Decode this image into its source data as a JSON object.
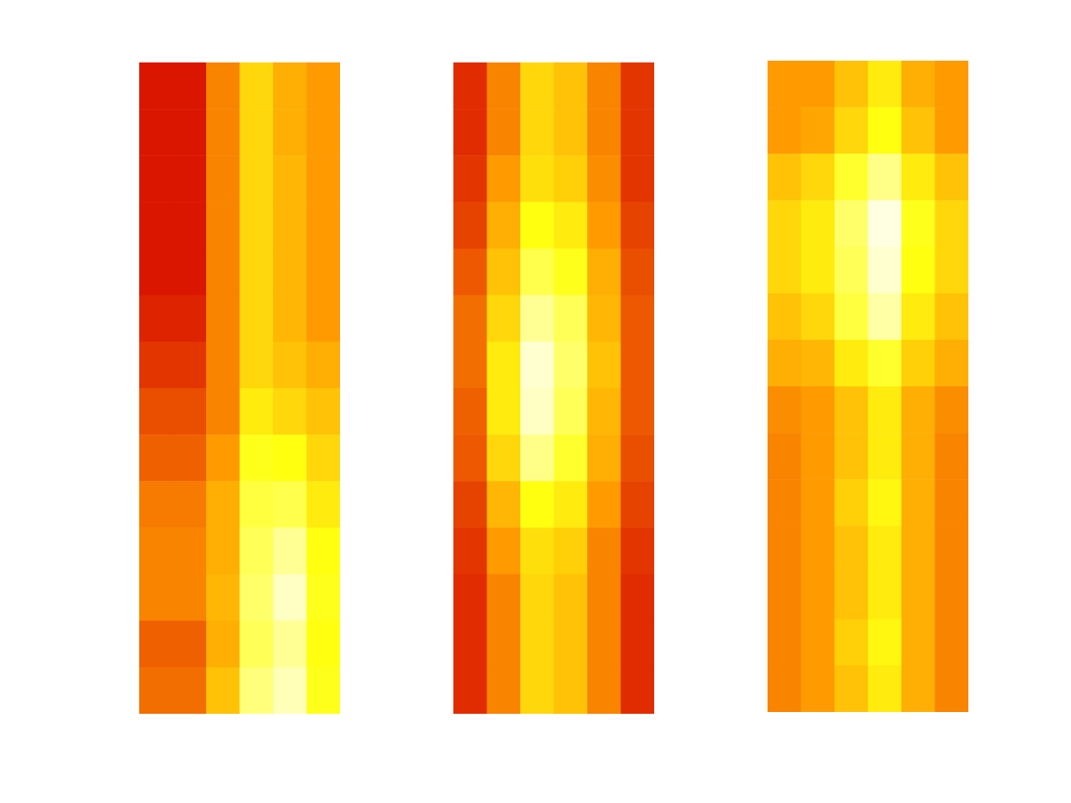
{
  "chart_data": [
    {
      "type": "heatmap",
      "tick_labels": false,
      "zlim": [
        0,
        1
      ],
      "cells": [
        [
          0.05,
          0.05,
          0.3,
          0.5,
          0.4,
          0.35
        ],
        [
          0.05,
          0.05,
          0.3,
          0.5,
          0.4,
          0.35
        ],
        [
          0.05,
          0.05,
          0.3,
          0.5,
          0.42,
          0.35
        ],
        [
          0.05,
          0.05,
          0.3,
          0.5,
          0.42,
          0.35
        ],
        [
          0.05,
          0.05,
          0.3,
          0.5,
          0.42,
          0.35
        ],
        [
          0.08,
          0.08,
          0.3,
          0.5,
          0.42,
          0.35
        ],
        [
          0.12,
          0.12,
          0.3,
          0.5,
          0.45,
          0.4
        ],
        [
          0.18,
          0.18,
          0.3,
          0.55,
          0.5,
          0.45
        ],
        [
          0.22,
          0.22,
          0.35,
          0.62,
          0.6,
          0.5
        ],
        [
          0.28,
          0.28,
          0.4,
          0.68,
          0.7,
          0.55
        ],
        [
          0.3,
          0.3,
          0.4,
          0.72,
          0.82,
          0.6
        ],
        [
          0.3,
          0.3,
          0.42,
          0.75,
          0.9,
          0.62
        ],
        [
          0.22,
          0.22,
          0.4,
          0.72,
          0.82,
          0.6
        ],
        [
          0.25,
          0.25,
          0.45,
          0.78,
          0.88,
          0.62
        ]
      ]
    },
    {
      "type": "heatmap",
      "tick_labels": false,
      "zlim": [
        0,
        1
      ],
      "cells": [
        [
          0.1,
          0.3,
          0.5,
          0.45,
          0.3,
          0.12
        ],
        [
          0.1,
          0.3,
          0.5,
          0.45,
          0.3,
          0.12
        ],
        [
          0.12,
          0.35,
          0.52,
          0.48,
          0.32,
          0.12
        ],
        [
          0.15,
          0.4,
          0.6,
          0.55,
          0.35,
          0.15
        ],
        [
          0.2,
          0.45,
          0.7,
          0.62,
          0.4,
          0.18
        ],
        [
          0.25,
          0.5,
          0.82,
          0.72,
          0.42,
          0.2
        ],
        [
          0.25,
          0.55,
          0.92,
          0.75,
          0.45,
          0.2
        ],
        [
          0.22,
          0.55,
          0.9,
          0.72,
          0.42,
          0.2
        ],
        [
          0.2,
          0.5,
          0.8,
          0.65,
          0.4,
          0.18
        ],
        [
          0.15,
          0.42,
          0.6,
          0.55,
          0.35,
          0.15
        ],
        [
          0.12,
          0.35,
          0.52,
          0.48,
          0.3,
          0.12
        ],
        [
          0.1,
          0.3,
          0.5,
          0.45,
          0.3,
          0.1
        ],
        [
          0.1,
          0.3,
          0.5,
          0.45,
          0.3,
          0.1
        ],
        [
          0.1,
          0.3,
          0.5,
          0.45,
          0.3,
          0.1
        ]
      ]
    },
    {
      "type": "heatmap",
      "tick_labels": false,
      "zlim": [
        0,
        1
      ],
      "cells": [
        [
          0.35,
          0.35,
          0.45,
          0.55,
          0.4,
          0.35
        ],
        [
          0.35,
          0.38,
          0.5,
          0.6,
          0.45,
          0.35
        ],
        [
          0.45,
          0.5,
          0.65,
          0.8,
          0.55,
          0.45
        ],
        [
          0.5,
          0.55,
          0.75,
          0.95,
          0.62,
          0.5
        ],
        [
          0.5,
          0.55,
          0.72,
          0.92,
          0.6,
          0.5
        ],
        [
          0.45,
          0.5,
          0.68,
          0.85,
          0.55,
          0.45
        ],
        [
          0.4,
          0.42,
          0.55,
          0.65,
          0.48,
          0.4
        ],
        [
          0.32,
          0.35,
          0.45,
          0.55,
          0.4,
          0.32
        ],
        [
          0.3,
          0.35,
          0.45,
          0.55,
          0.4,
          0.3
        ],
        [
          0.3,
          0.35,
          0.48,
          0.58,
          0.4,
          0.3
        ],
        [
          0.3,
          0.35,
          0.45,
          0.55,
          0.4,
          0.3
        ],
        [
          0.3,
          0.35,
          0.45,
          0.55,
          0.4,
          0.3
        ],
        [
          0.3,
          0.35,
          0.48,
          0.58,
          0.4,
          0.3
        ],
        [
          0.3,
          0.35,
          0.45,
          0.55,
          0.4,
          0.3
        ]
      ]
    }
  ]
}
